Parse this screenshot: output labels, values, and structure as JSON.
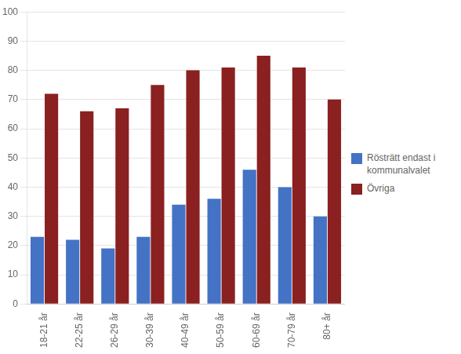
{
  "chart_data": {
    "type": "bar",
    "categories": [
      "18-21 år",
      "22-25 år",
      "26-29 år",
      "30-39 år",
      "40-49 år",
      "50-59 år",
      "60-69 år",
      "70-79 år",
      "80+ år"
    ],
    "series": [
      {
        "name": "Rösträtt endast i\nkommunalvalet",
        "color": "#4472C4",
        "values": [
          23,
          22,
          19,
          23,
          34,
          36,
          46,
          40,
          30
        ]
      },
      {
        "name": "Övriga",
        "color": "#8B2020",
        "values": [
          72,
          66,
          67,
          75,
          80,
          81,
          85,
          81,
          70
        ]
      }
    ],
    "ylim": [
      0,
      100
    ],
    "yticks": [
      0,
      10,
      20,
      30,
      40,
      50,
      60,
      70,
      80,
      90,
      100
    ],
    "grid": true,
    "legend": "right"
  }
}
